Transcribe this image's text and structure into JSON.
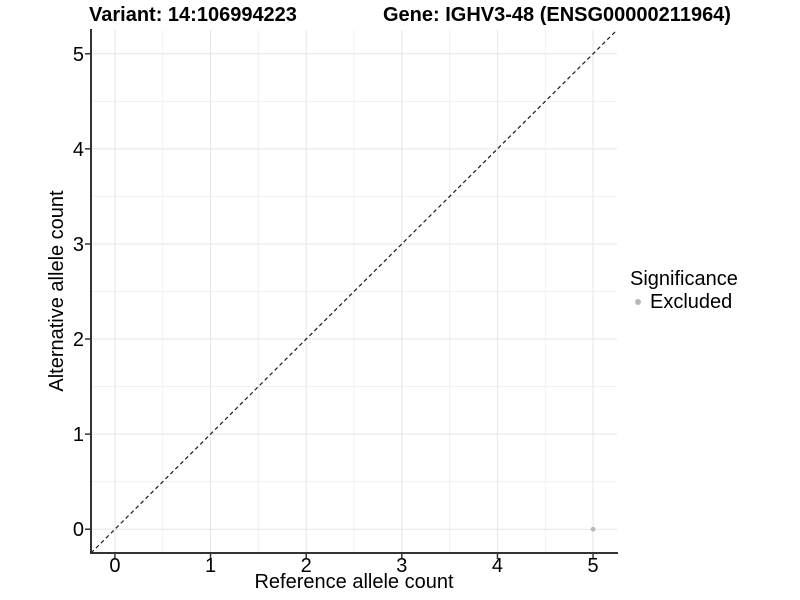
{
  "titles": {
    "left": "Variant: 14:106994223",
    "right": "Gene: IGHV3-48 (ENSG00000211964)"
  },
  "chart_data": {
    "type": "scatter",
    "xlabel": "Reference allele count",
    "ylabel": "Alternative allele count",
    "xlim": [
      -0.25,
      5.25
    ],
    "ylim": [
      -0.25,
      5.25
    ],
    "x_ticks": [
      0,
      1,
      2,
      3,
      4,
      5
    ],
    "y_ticks": [
      0,
      1,
      2,
      3,
      4,
      5
    ],
    "x_minor_ticks": [
      0.5,
      1.5,
      2.5,
      3.5,
      4.5
    ],
    "y_minor_ticks": [
      0.5,
      1.5,
      2.5,
      3.5,
      4.5
    ],
    "grid": "major+minor",
    "reference_line": {
      "type": "abline",
      "slope": 1,
      "intercept": 0,
      "style": "dashed",
      "color": "#1a1a1a"
    },
    "series": [
      {
        "name": "Excluded",
        "color": "#b8b8b8",
        "points": [
          {
            "x": 5,
            "y": 0
          }
        ]
      }
    ],
    "legend": {
      "title": "Significance",
      "position": "right",
      "items": [
        {
          "label": "Excluded",
          "color": "#b8b8b8"
        }
      ]
    },
    "colors": {
      "background": "#ffffff",
      "grid_major": "#e5e5e5",
      "grid_minor": "#f0f0f0",
      "axis_line": "#333333",
      "tick_mark": "#333333",
      "tick_label": "#000000"
    }
  }
}
